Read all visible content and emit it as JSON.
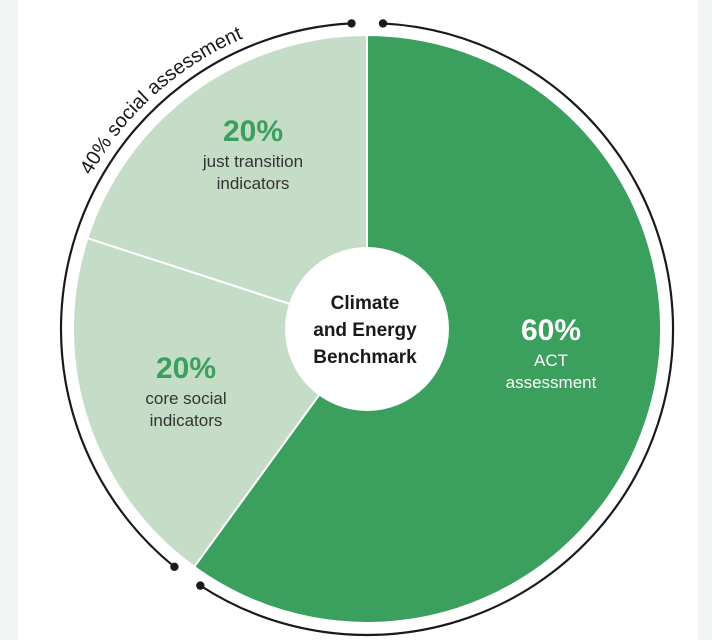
{
  "chart_data": {
    "type": "pie",
    "title": "",
    "center_label": [
      "Climate",
      "and Energy",
      "Benchmark"
    ],
    "slices": [
      {
        "value": 60,
        "value_label": "60%",
        "label": [
          "ACT",
          "assessment"
        ]
      },
      {
        "value": 20,
        "value_label": "20%",
        "label": [
          "core social",
          "indicators"
        ]
      },
      {
        "value": 20,
        "value_label": "20%",
        "label": [
          "just transition",
          "indicators"
        ]
      }
    ],
    "group_annotation": {
      "text": "40% social assessment",
      "covers_slices": [
        1,
        2
      ]
    }
  },
  "colors": {
    "primary_slice": "#3b9f5e",
    "secondary_slice": "#c5dcc7",
    "primary_label": "#ffffff",
    "secondary_value": "#3b9f5e",
    "secondary_label": "#333333",
    "center_fill": "#ffffff",
    "center_text": "#1a1a1a",
    "outer_ring": "#1a1a1a"
  }
}
